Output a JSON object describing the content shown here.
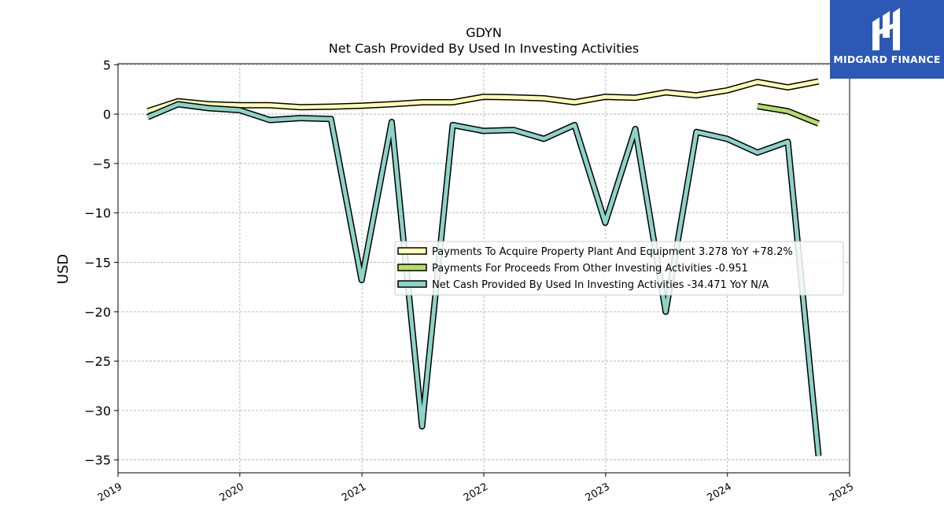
{
  "chart_data": {
    "type": "line",
    "title": "GDYN",
    "subtitle": "Net Cash Provided By Used In Investing Activities",
    "xlabel": "",
    "ylabel": "USD",
    "xlim": [
      "2019-01-01",
      "2025-01-01"
    ],
    "ylim": [
      -36.3,
      5.1
    ],
    "x_ticks": [
      "2019",
      "2020",
      "2021",
      "2022",
      "2023",
      "2024",
      "2025"
    ],
    "y_ticks": [
      5,
      0,
      -5,
      -10,
      -15,
      -20,
      -25,
      -30,
      -35
    ],
    "grid": true,
    "legend_position": "center-right",
    "series": [
      {
        "name": "Payments To Acquire Property Plant And Equipment  3.278 YoY +78.2%",
        "color": "#ffffb3",
        "points": [
          [
            "2019-03-31",
            0.3
          ],
          [
            "2019-06-30",
            1.3
          ],
          [
            "2019-09-30",
            1.0
          ],
          [
            "2019-12-31",
            0.9
          ],
          [
            "2020-03-31",
            0.9
          ],
          [
            "2020-06-30",
            0.7
          ],
          [
            "2020-09-30",
            0.75
          ],
          [
            "2020-12-31",
            0.85
          ],
          [
            "2021-03-31",
            1.0
          ],
          [
            "2021-06-30",
            1.2
          ],
          [
            "2021-09-30",
            1.2
          ],
          [
            "2021-12-31",
            1.75
          ],
          [
            "2022-03-31",
            1.7
          ],
          [
            "2022-06-30",
            1.6
          ],
          [
            "2022-09-30",
            1.2
          ],
          [
            "2022-12-31",
            1.75
          ],
          [
            "2023-03-31",
            1.65
          ],
          [
            "2023-06-30",
            2.2
          ],
          [
            "2023-09-30",
            1.9
          ],
          [
            "2023-12-31",
            2.4
          ],
          [
            "2024-03-31",
            3.25
          ],
          [
            "2024-06-30",
            2.7
          ],
          [
            "2024-09-30",
            3.3
          ]
        ]
      },
      {
        "name": "Payments For Proceeds From Other Investing Activities  -0.951",
        "color": "#b3de69",
        "points": [
          [
            "2024-03-31",
            0.8
          ],
          [
            "2024-06-30",
            0.3
          ],
          [
            "2024-09-30",
            -0.95
          ]
        ]
      },
      {
        "name": "Net Cash Provided By Used In Investing Activities  -34.471 YoY N/A",
        "color": "#8dd3c7",
        "points": [
          [
            "2019-03-31",
            -0.3
          ],
          [
            "2019-06-30",
            1.0
          ],
          [
            "2019-09-30",
            0.6
          ],
          [
            "2019-12-31",
            0.4
          ],
          [
            "2020-03-31",
            -0.6
          ],
          [
            "2020-06-30",
            -0.4
          ],
          [
            "2020-09-30",
            -0.5
          ],
          [
            "2020-12-31",
            -16.8
          ],
          [
            "2021-03-31",
            -0.8
          ],
          [
            "2021-06-30",
            -31.6
          ],
          [
            "2021-09-30",
            -1.1
          ],
          [
            "2021-12-31",
            -1.7
          ],
          [
            "2022-03-31",
            -1.6
          ],
          [
            "2022-06-30",
            -2.5
          ],
          [
            "2022-09-30",
            -1.1
          ],
          [
            "2022-12-31",
            -11.0
          ],
          [
            "2023-03-31",
            -1.5
          ],
          [
            "2023-06-30",
            -20.0
          ],
          [
            "2023-09-30",
            -1.8
          ],
          [
            "2023-12-31",
            -2.5
          ],
          [
            "2024-03-31",
            -3.9
          ],
          [
            "2024-06-30",
            -2.8
          ],
          [
            "2024-09-30",
            -34.6
          ]
        ]
      }
    ]
  },
  "logo": {
    "text": "MIDGARD FINANCE",
    "color": "#2b59b5"
  }
}
